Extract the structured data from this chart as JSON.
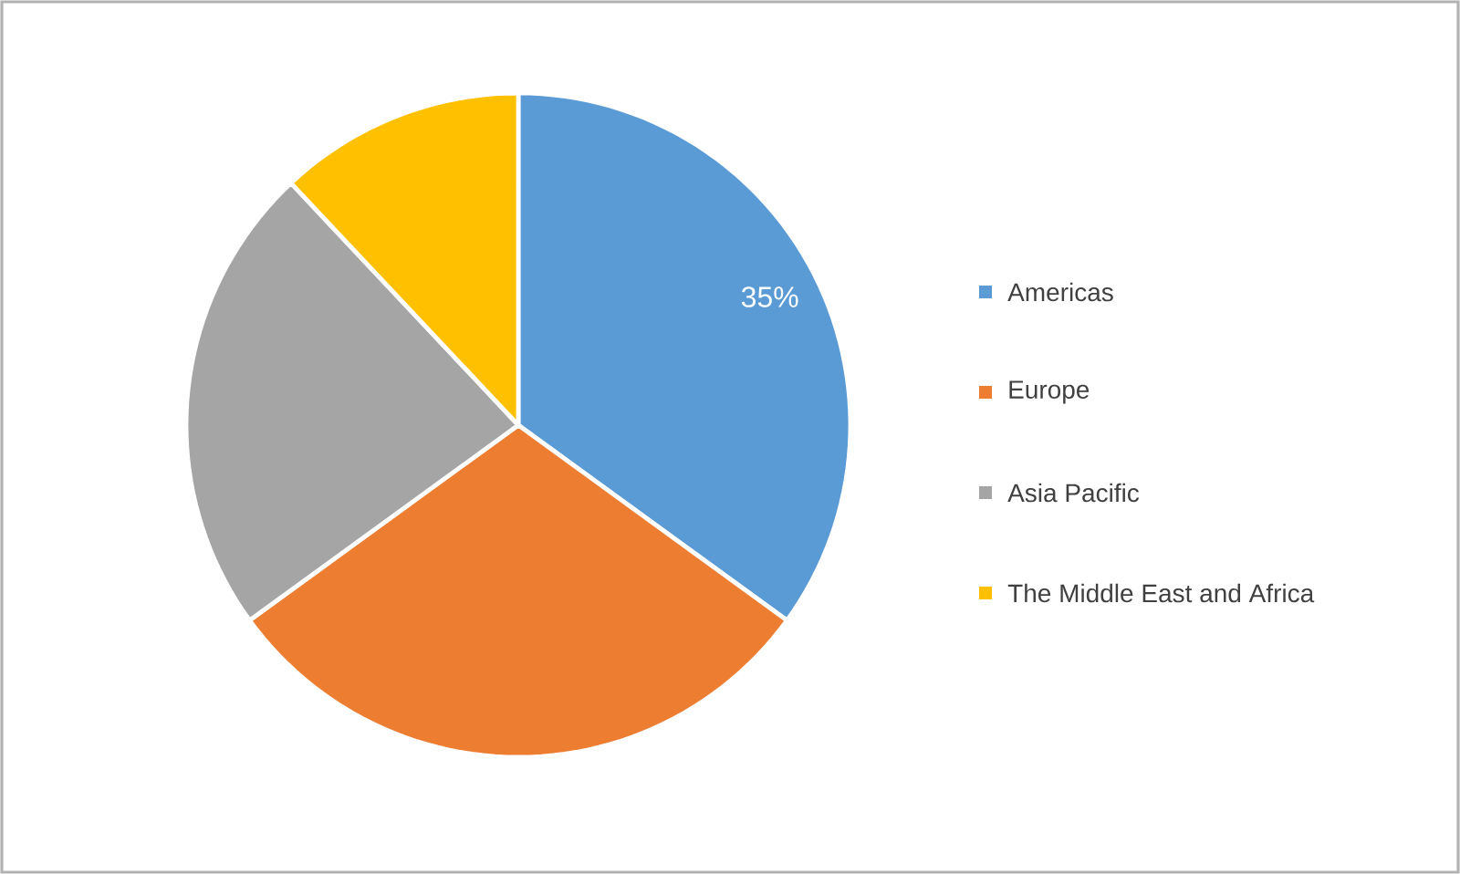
{
  "chart_data": {
    "type": "pie",
    "categories": [
      "Americas",
      "Europe",
      "Asia Pacific",
      "The Middle East and Africa"
    ],
    "values": [
      35,
      30,
      23,
      12
    ],
    "colors": [
      "#5b9bd5",
      "#ed7d31",
      "#a5a5a5",
      "#ffc000"
    ],
    "value_labels": [
      "35%",
      null,
      null,
      null
    ],
    "legend": "right"
  }
}
